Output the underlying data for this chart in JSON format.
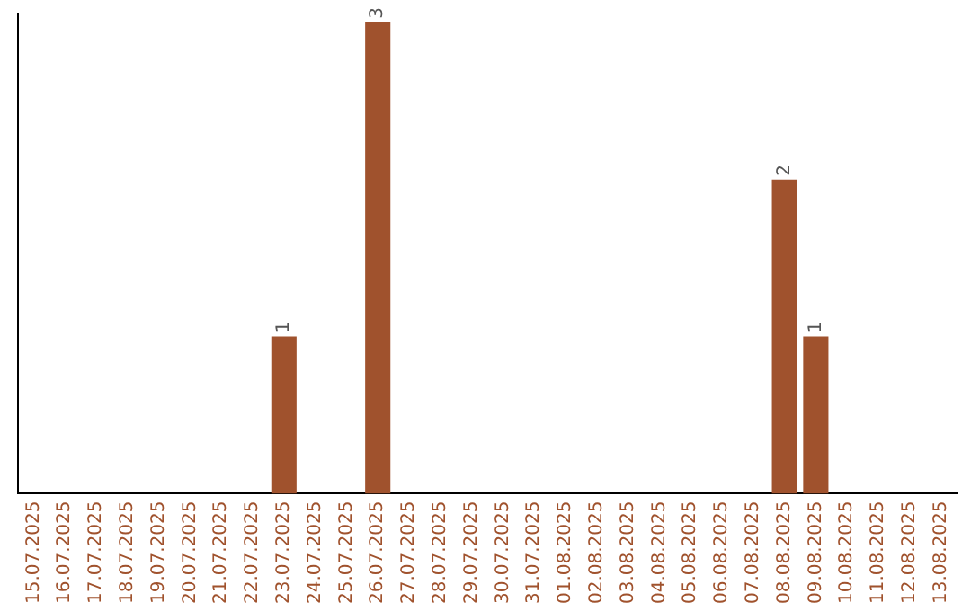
{
  "chart_data": {
    "type": "bar",
    "categories": [
      "15.07.2025",
      "16.07.2025",
      "17.07.2025",
      "18.07.2025",
      "19.07.2025",
      "20.07.2025",
      "21.07.2025",
      "22.07.2025",
      "23.07.2025",
      "24.07.2025",
      "25.07.2025",
      "26.07.2025",
      "27.07.2025",
      "28.07.2025",
      "29.07.2025",
      "30.07.2025",
      "31.07.2025",
      "01.08.2025",
      "02.08.2025",
      "03.08.2025",
      "04.08.2025",
      "05.08.2025",
      "06.08.2025",
      "07.08.2025",
      "08.08.2025",
      "09.08.2025",
      "10.08.2025",
      "11.08.2025",
      "12.08.2025",
      "13.08.2025"
    ],
    "values": [
      0,
      0,
      0,
      0,
      0,
      0,
      0,
      0,
      1,
      0,
      0,
      3,
      0,
      0,
      0,
      0,
      0,
      0,
      0,
      0,
      0,
      0,
      0,
      0,
      2,
      1,
      0,
      0,
      0,
      0
    ],
    "value_labels": [
      null,
      null,
      null,
      null,
      null,
      null,
      null,
      null,
      "1",
      null,
      null,
      "3",
      null,
      null,
      null,
      null,
      null,
      null,
      null,
      null,
      null,
      null,
      null,
      null,
      "2",
      "1",
      null,
      null,
      null,
      null
    ],
    "color": "#a0522d",
    "ylim": [
      0,
      3.05
    ],
    "tick_labels": "x",
    "grid": false,
    "legend": false
  }
}
